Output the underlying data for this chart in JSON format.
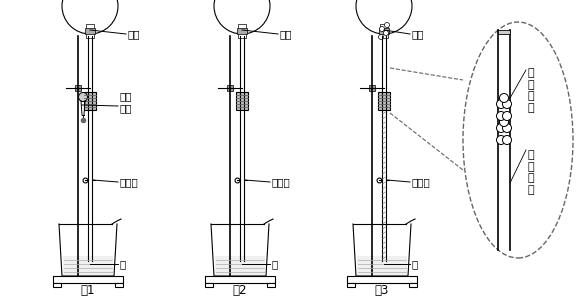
{
  "bg_color": "#ffffff",
  "line_color": "#000000",
  "fig_width": 5.8,
  "fig_height": 2.98,
  "dpi": 100,
  "ammonia_label": "氨气",
  "water_label": "水",
  "clamp_label": "止水夹",
  "dropper_label": "胶头\n滴管",
  "glass_tube_label": "玻\n璃\n套\n管",
  "solid_label": "某\n种\n固\n体",
  "fig1_label": "图1",
  "fig2_label": "图2",
  "fig3_label": "图3"
}
